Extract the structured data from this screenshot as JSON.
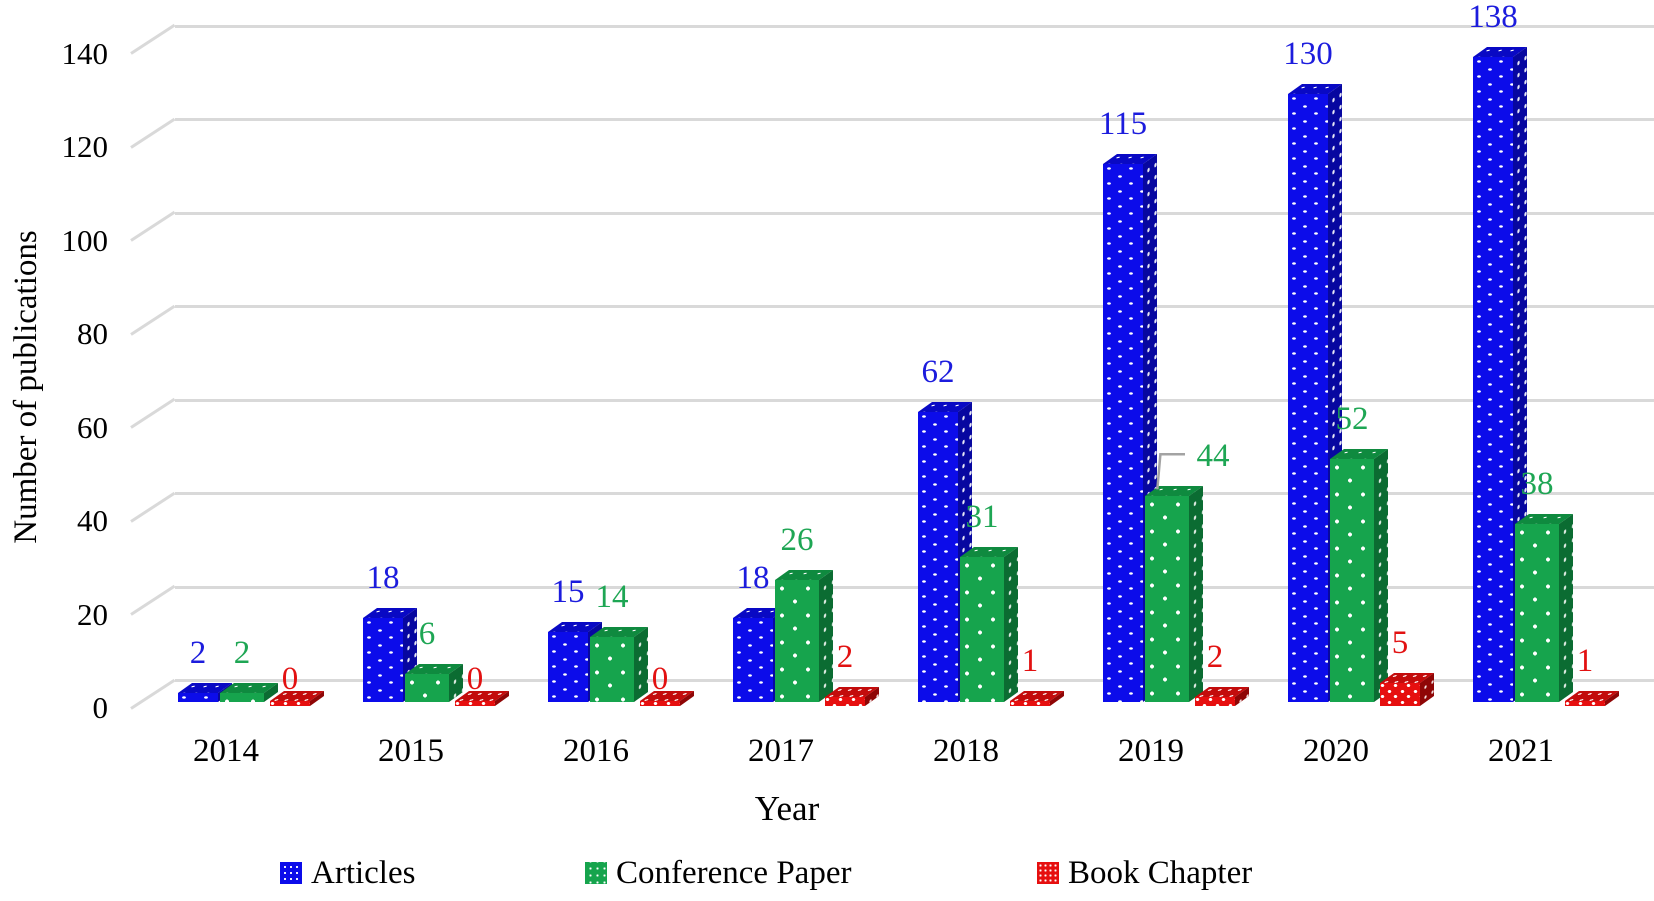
{
  "chart_data": {
    "type": "bar",
    "style": "3d-clustered-column",
    "title": "",
    "xlabel": "Year",
    "ylabel": "Number of publications",
    "categories": [
      "2014",
      "2015",
      "2016",
      "2017",
      "2018",
      "2019",
      "2020",
      "2021"
    ],
    "series": [
      {
        "name": "Articles",
        "color": "#0c0cea",
        "values": [
          2,
          18,
          15,
          18,
          62,
          115,
          130,
          138
        ]
      },
      {
        "name": "Conference Paper",
        "color": "#16a44d",
        "values": [
          2,
          6,
          14,
          26,
          31,
          44,
          52,
          38
        ]
      },
      {
        "name": "Book Chapter",
        "color": "#e60f0f",
        "values": [
          0,
          0,
          0,
          2,
          1,
          2,
          5,
          1
        ]
      }
    ],
    "yticks": [
      0,
      20,
      40,
      60,
      80,
      100,
      120,
      140
    ],
    "ylim": [
      0,
      140
    ],
    "grid": true,
    "gridline_color": "#d9d9d9",
    "data_labels": true,
    "legend_position": "bottom",
    "callout": {
      "series_index": 1,
      "category_index": 5,
      "leader_color": "#a3a3a3"
    }
  }
}
